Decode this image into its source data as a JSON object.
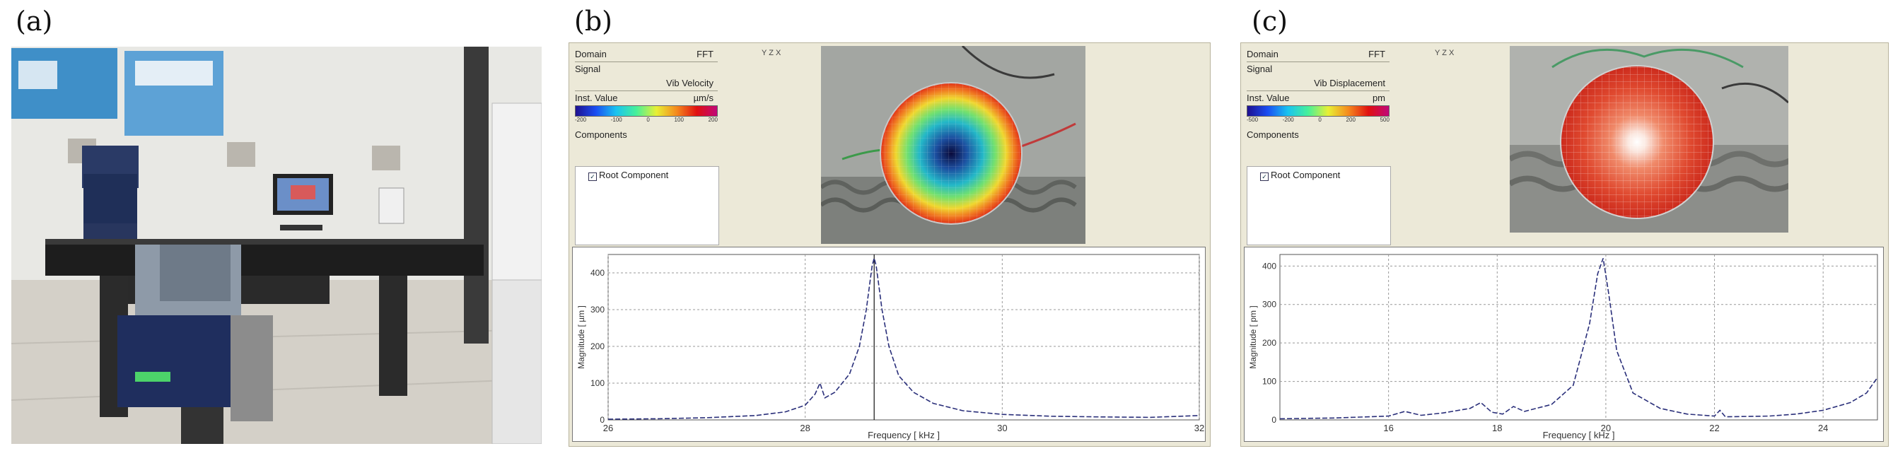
{
  "labels": {
    "a": "(a)",
    "b": "(b)",
    "c": "(c)"
  },
  "panel_b": {
    "domain_label": "Domain",
    "domain_value": "FFT",
    "signal_label": "Signal",
    "signal_value": "Vib Velocity",
    "inst_label": "Inst. Value",
    "unit": "µm/s",
    "colorbar_ticks": [
      "-200",
      "-100",
      "0",
      "100",
      "200"
    ],
    "components_label": "Components",
    "component_item": "Root Component",
    "axes_icon": "Y Z X",
    "plot": {
      "xlabel": "Frequency [ kHz ]",
      "ylabel": "Magnitude [ µm ]",
      "xticks": [
        "26",
        "28",
        "30",
        "32"
      ],
      "yticks": [
        "0",
        "100",
        "200",
        "300",
        "400"
      ]
    }
  },
  "panel_c": {
    "domain_label": "Domain",
    "domain_value": "FFT",
    "signal_label": "Signal",
    "signal_value": "Vib Displacement",
    "inst_label": "Inst. Value",
    "unit": "pm",
    "colorbar_ticks": [
      "-500",
      "-200",
      "0",
      "200",
      "500"
    ],
    "components_label": "Components",
    "component_item": "Root Component",
    "axes_icon": "Y Z X",
    "plot": {
      "xlabel": "Frequency [ kHz ]",
      "ylabel": "Magnitude [ pm ]",
      "xticks": [
        "16",
        "18",
        "20",
        "22",
        "24"
      ],
      "yticks": [
        "0",
        "100",
        "200",
        "300",
        "400"
      ]
    }
  },
  "chart_data": [
    {
      "type": "line",
      "panel": "b",
      "xlabel": "Frequency [ kHz ]",
      "ylabel": "Magnitude [ µm ]",
      "xlim": [
        26,
        32
      ],
      "ylim": [
        0,
        450
      ],
      "x": [
        26.0,
        26.5,
        27.0,
        27.5,
        27.8,
        28.0,
        28.1,
        28.15,
        28.2,
        28.3,
        28.45,
        28.55,
        28.62,
        28.66,
        28.68,
        28.7,
        28.72,
        28.74,
        28.78,
        28.85,
        28.95,
        29.1,
        29.3,
        29.6,
        30.0,
        30.5,
        31.0,
        31.5,
        32.0
      ],
      "y": [
        2,
        3,
        6,
        12,
        22,
        40,
        70,
        100,
        60,
        75,
        125,
        200,
        300,
        380,
        420,
        440,
        420,
        380,
        300,
        200,
        120,
        75,
        45,
        25,
        15,
        10,
        8,
        7,
        12
      ]
    },
    {
      "type": "line",
      "panel": "c",
      "xlabel": "Frequency [ kHz ]",
      "ylabel": "Magnitude [ pm ]",
      "xlim": [
        14,
        25
      ],
      "ylim": [
        0,
        430
      ],
      "x": [
        14.0,
        15.0,
        16.0,
        16.3,
        16.6,
        17.0,
        17.5,
        17.7,
        17.9,
        18.1,
        18.3,
        18.5,
        19.0,
        19.4,
        19.7,
        19.85,
        19.95,
        20.05,
        20.2,
        20.5,
        21.0,
        21.5,
        22.0,
        22.1,
        22.2,
        23.0,
        23.5,
        24.0,
        24.5,
        24.8,
        25.0
      ],
      "y": [
        3,
        5,
        10,
        22,
        12,
        18,
        30,
        45,
        20,
        15,
        35,
        22,
        40,
        90,
        250,
        380,
        420,
        330,
        180,
        70,
        30,
        15,
        10,
        25,
        8,
        10,
        15,
        25,
        45,
        70,
        110
      ]
    }
  ]
}
